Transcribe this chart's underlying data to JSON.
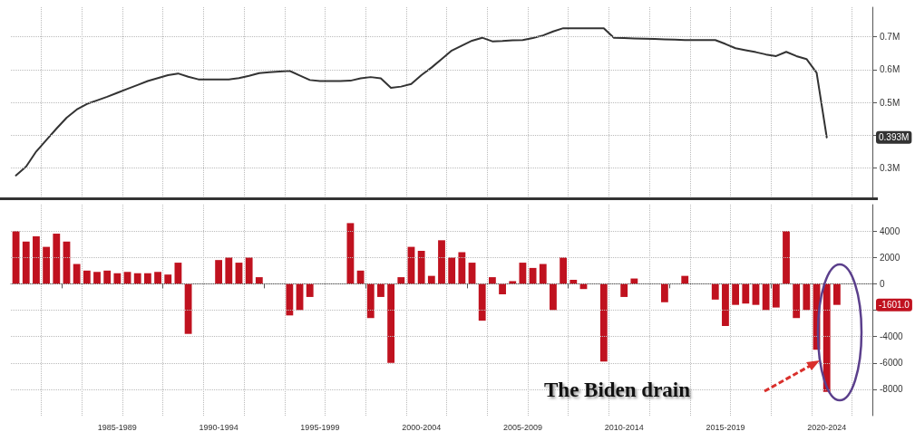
{
  "chart_data": [
    {
      "type": "line",
      "categories": [
        null,
        null,
        null,
        null,
        null,
        null,
        null,
        null,
        null,
        null,
        null,
        null,
        null,
        null,
        null,
        null,
        null,
        null,
        null,
        null,
        null,
        null,
        null,
        null,
        null,
        null,
        null,
        null,
        null,
        null,
        null,
        null,
        null,
        null,
        null,
        null,
        null,
        null,
        null,
        null,
        null,
        null,
        null,
        null,
        null,
        null,
        null,
        null,
        null,
        null,
        null,
        null,
        null,
        null,
        null,
        null,
        null,
        null,
        null,
        null,
        null,
        null,
        null,
        null,
        null,
        null,
        null,
        null,
        null,
        null,
        null,
        null,
        null,
        null,
        null,
        null,
        null,
        null,
        null,
        null,
        null,
        null,
        null,
        null,
        null
      ],
      "series": [
        {
          "color": "#333333",
          "values": [
            0.277,
            0.304,
            0.35,
            0.385,
            0.42,
            0.453,
            0.478,
            0.495,
            0.506,
            0.517,
            0.529,
            0.541,
            0.553,
            0.565,
            0.574,
            0.583,
            0.588,
            0.578,
            0.57,
            0.57,
            0.57,
            0.57,
            0.574,
            0.581,
            0.589,
            0.592,
            0.594,
            0.596,
            0.582,
            0.568,
            0.565,
            0.565,
            0.565,
            0.566,
            0.573,
            0.577,
            0.573,
            0.544,
            0.548,
            0.556,
            0.583,
            0.606,
            0.632,
            0.658,
            0.673,
            0.688,
            0.697,
            0.686,
            0.687,
            0.689,
            0.69,
            0.696,
            0.704,
            0.716,
            0.726,
            0.726,
            0.726,
            0.726,
            0.726,
            0.697,
            0.696,
            0.695,
            0.694,
            0.693,
            0.692,
            0.691,
            0.69,
            0.69,
            0.69,
            0.69,
            0.678,
            0.665,
            0.659,
            0.653,
            0.646,
            0.641,
            0.654,
            0.641,
            0.632,
            0.59,
            0.393,
            null,
            null,
            null,
            null
          ]
        }
      ],
      "ylim": [
        0.21,
        0.79
      ],
      "yticks": [
        {
          "value": 0.3,
          "label": "0.3M"
        },
        {
          "value": 0.4,
          "label": null
        },
        {
          "value": 0.5,
          "label": "0.5M"
        },
        {
          "value": 0.6,
          "label": "0.6M"
        },
        {
          "value": 0.7,
          "label": "0.7M"
        }
      ],
      "grid": true,
      "tick_labels": "y",
      "marker": "none",
      "annotations": [
        "0.393M"
      ]
    },
    {
      "type": "bar",
      "categories": [
        null,
        null,
        null,
        null,
        null,
        null,
        null,
        null,
        null,
        null,
        "1985-1989",
        null,
        null,
        null,
        null,
        null,
        null,
        null,
        null,
        null,
        "1990-1994",
        null,
        null,
        null,
        null,
        null,
        null,
        null,
        null,
        null,
        "1995-1999",
        null,
        null,
        null,
        null,
        null,
        null,
        null,
        null,
        null,
        "2000-2004",
        null,
        null,
        null,
        null,
        null,
        null,
        null,
        null,
        null,
        "2005-2009",
        null,
        null,
        null,
        null,
        null,
        null,
        null,
        null,
        null,
        "2010-2014",
        null,
        null,
        null,
        null,
        null,
        null,
        null,
        null,
        null,
        "2015-2019",
        null,
        null,
        null,
        null,
        null,
        null,
        null,
        null,
        null,
        "2020-2024",
        null,
        null,
        null,
        null
      ],
      "series": [
        {
          "color": "#c0121f",
          "values": [
            4000,
            3200,
            3600,
            2800,
            3800,
            3200,
            1500,
            1000,
            900,
            1000,
            800,
            900,
            800,
            800,
            900,
            700,
            1600,
            -3800,
            null,
            null,
            1800,
            2000,
            1600,
            2000,
            500,
            null,
            null,
            -2400,
            -2000,
            -1000,
            null,
            null,
            null,
            4600,
            1000,
            -2600,
            -1000,
            -6000,
            500,
            2800,
            2500,
            600,
            3300,
            2000,
            2400,
            1600,
            -2800,
            500,
            -800,
            200,
            1600,
            1200,
            1500,
            -2000,
            2000,
            300,
            -400,
            null,
            -5900,
            null,
            -1000,
            400,
            null,
            null,
            -1400,
            null,
            600,
            null,
            null,
            -1200,
            -3200,
            -1600,
            -1500,
            -1600,
            -2000,
            -1800,
            4000,
            -2600,
            -2000,
            -5000,
            -8200,
            -1600,
            null,
            null,
            null
          ]
        }
      ],
      "ylim": [
        -10000,
        6000
      ],
      "yticks": [
        {
          "value": -8000,
          "label": "-8000"
        },
        {
          "value": -6000,
          "label": "-6000"
        },
        {
          "value": -4000,
          "label": "-4000"
        },
        {
          "value": -2000,
          "label": null
        },
        {
          "value": 0,
          "label": "0"
        },
        {
          "value": 2000,
          "label": "2000"
        },
        {
          "value": 4000,
          "label": "4000"
        }
      ],
      "grid": true,
      "annotations": [
        "-1601.0",
        "The Biden drain"
      ]
    }
  ]
}
